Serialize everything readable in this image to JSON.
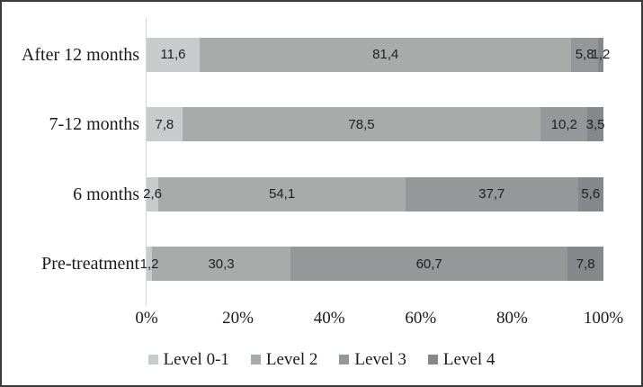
{
  "frame": {
    "background": "#ffffff",
    "border_color": "#3b3b3b"
  },
  "chart_data": {
    "type": "bar",
    "orientation": "horizontal",
    "stacked": true,
    "title": "",
    "xlabel": "",
    "ylabel": "",
    "xlim": [
      0,
      100
    ],
    "grid": false,
    "legend_position": "bottom",
    "axis_line_color": "#d6d7d8",
    "categories": [
      "After 12 months",
      "7-12 months",
      "6 months",
      "Pre-treatment"
    ],
    "series": [
      {
        "name": "Level 0-1",
        "color": "#c9cacb",
        "values": [
          11.6,
          7.8,
          2.6,
          1.2
        ]
      },
      {
        "name": "Level 2",
        "color": "#a9abab",
        "values": [
          81.4,
          78.5,
          54.1,
          30.3
        ]
      },
      {
        "name": "Level 3",
        "color": "#959798",
        "values": [
          5.8,
          10.2,
          37.7,
          60.7
        ]
      },
      {
        "name": "Level 4",
        "color": "#85878a",
        "values": [
          1.2,
          3.5,
          5.6,
          7.8
        ]
      }
    ],
    "data_labels": [
      [
        "11,6",
        "81,4",
        "5,8",
        "1,2"
      ],
      [
        "7,8",
        "78,5",
        "10,2",
        "3,5"
      ],
      [
        "2,6",
        "54,1",
        "37,7",
        "5,6"
      ],
      [
        "1,2",
        "30,3",
        "60,7",
        "7,8"
      ]
    ],
    "x_ticks": [
      "0%",
      "20%",
      "40%",
      "60%",
      "80%",
      "100%"
    ]
  }
}
